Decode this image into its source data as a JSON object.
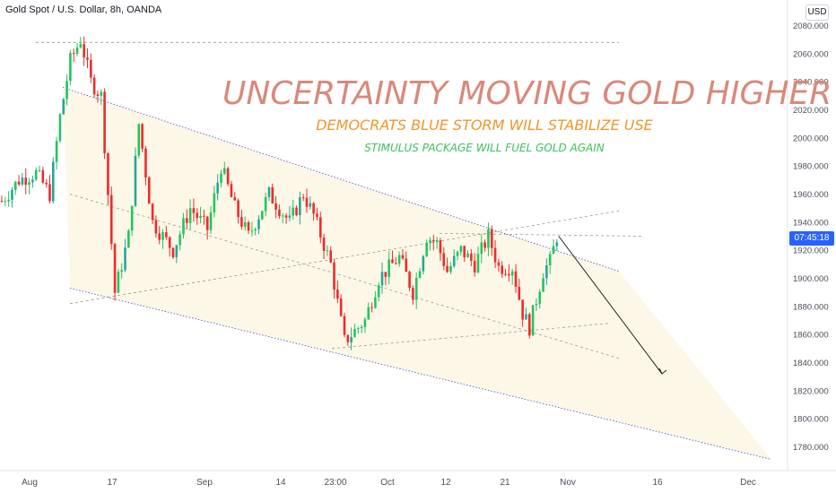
{
  "chart": {
    "symbol_title": "Gold Spot / U.S. Dollar, 8h, OANDA",
    "currency": "USD",
    "price_tag": "07:45:18"
  },
  "annotations": {
    "headline": "UNCERTAINTY MOVING GOLD HIGHER",
    "subheadline_1": "DEMOCRATS BLUE STORM WILL STABILIZE USE",
    "subheadline_2": "STIMULUS PACKAGE WILL FUEL GOLD AGAIN"
  },
  "colors": {
    "up": "#26a69a",
    "up_bright": "#22c55e",
    "down": "#ef2b2b",
    "channel": "#3b4ed8",
    "channel_fill": "#fdf6e3",
    "headline": "#d9897a",
    "sub1": "#f0962a",
    "sub2": "#3fbf5a",
    "axis_text": "#4a4e59",
    "price_tag": "#2962ff"
  },
  "chart_data": {
    "type": "candlestick",
    "x_tick_labels": [
      "Aug",
      "17",
      "Sep",
      "14",
      "23:00",
      "Oct",
      "12",
      "21",
      "Nov",
      "16",
      "Dec"
    ],
    "y_tick_labels": [
      "2080.000",
      "2060.000",
      "2040.000",
      "2020.000",
      "2000.000",
      "1980.000",
      "1960.000",
      "1940.000",
      "1920.000",
      "1900.000",
      "1880.000",
      "1860.000",
      "1840.000",
      "1820.000",
      "1800.000",
      "1780.000"
    ],
    "ylim": [
      1772,
      2088
    ],
    "anchors": [
      {
        "i": 0,
        "p": 1955
      },
      {
        "i": 5,
        "p": 1970
      },
      {
        "i": 10,
        "p": 1975
      },
      {
        "i": 14,
        "p": 1960
      },
      {
        "i": 17,
        "p": 2015
      },
      {
        "i": 20,
        "p": 2055
      },
      {
        "i": 23,
        "p": 2070
      },
      {
        "i": 26,
        "p": 2040
      },
      {
        "i": 29,
        "p": 2030
      },
      {
        "i": 33,
        "p": 1890
      },
      {
        "i": 37,
        "p": 1930
      },
      {
        "i": 40,
        "p": 2010
      },
      {
        "i": 44,
        "p": 1940
      },
      {
        "i": 50,
        "p": 1920
      },
      {
        "i": 55,
        "p": 1950
      },
      {
        "i": 60,
        "p": 1935
      },
      {
        "i": 64,
        "p": 1980
      },
      {
        "i": 68,
        "p": 1950
      },
      {
        "i": 72,
        "p": 1930
      },
      {
        "i": 78,
        "p": 1960
      },
      {
        "i": 84,
        "p": 1940
      },
      {
        "i": 88,
        "p": 1960
      },
      {
        "i": 91,
        "p": 1945
      },
      {
        "i": 96,
        "p": 1910
      },
      {
        "i": 100,
        "p": 1855
      },
      {
        "i": 106,
        "p": 1870
      },
      {
        "i": 110,
        "p": 1900
      },
      {
        "i": 116,
        "p": 1915
      },
      {
        "i": 120,
        "p": 1890
      },
      {
        "i": 124,
        "p": 1930
      },
      {
        "i": 127,
        "p": 1925
      },
      {
        "i": 130,
        "p": 1905
      },
      {
        "i": 134,
        "p": 1920
      },
      {
        "i": 138,
        "p": 1910
      },
      {
        "i": 142,
        "p": 1930
      },
      {
        "i": 145,
        "p": 1908
      },
      {
        "i": 149,
        "p": 1908
      },
      {
        "i": 152,
        "p": 1875
      },
      {
        "i": 154,
        "p": 1865
      },
      {
        "i": 158,
        "p": 1905
      },
      {
        "i": 160,
        "p": 1912
      },
      {
        "i": 162,
        "p": 1930
      }
    ],
    "y_grid": false,
    "trend_arrow": {
      "to_price": 1832,
      "x_index": 171
    }
  }
}
